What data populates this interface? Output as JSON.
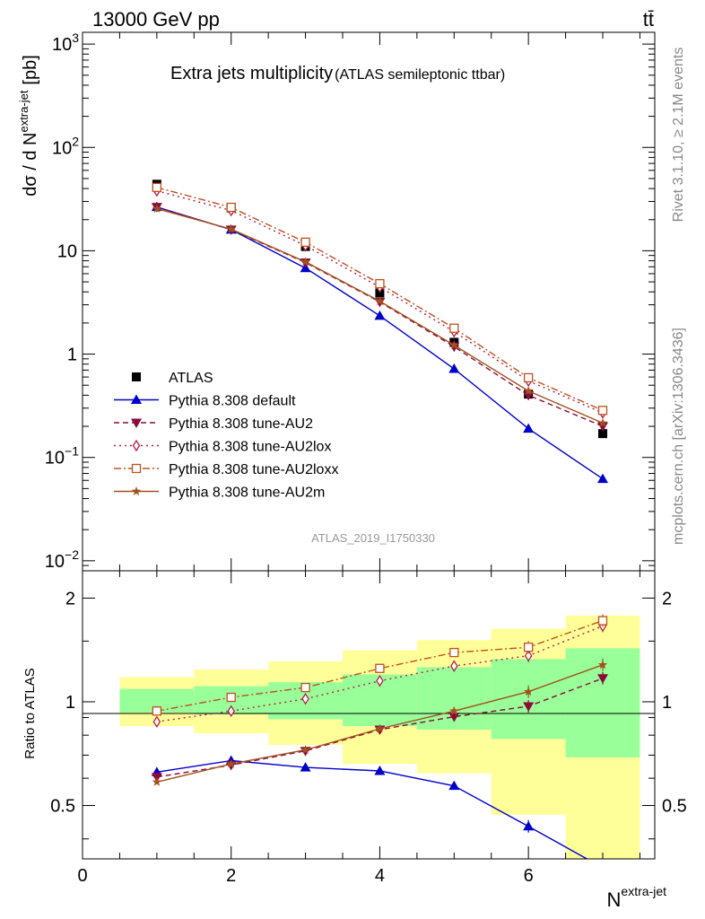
{
  "header": {
    "left": "13000 GeV pp",
    "right": "tt̄"
  },
  "side_labels": {
    "rivet": "Rivet 3.1.10, ≥ 2.1M events",
    "mcplots": "mcplots.cern.ch [arXiv:1306.3436]"
  },
  "main": {
    "title": "Extra jets multiplicity",
    "subtitle": "(ATLAS semileptonic ttbar)",
    "ylabel_prefix": "dσ / d N",
    "ylabel_sup": "extra-jet",
    "ylabel_unit": "[pb]",
    "watermark": "ATLAS_2019_I1750330"
  },
  "ratio": {
    "ylabel": "Ratio to ATLAS"
  },
  "xaxis": {
    "label_main": "N",
    "label_sup": "extra-jet"
  },
  "colors": {
    "data": "#000000",
    "default": "#0000cc",
    "au2": "#8b0a3c",
    "au2lox": "#b01f48",
    "au2loxx": "#c0501f",
    "au2m": "#a0521d",
    "band_inner": "#99ff99",
    "band_outer": "#ffff99"
  },
  "chart_data": [
    {
      "type": "scatter",
      "panel": "main",
      "ylog": true,
      "xlim": [
        0,
        7.7
      ],
      "ylim": [
        0.008,
        1300
      ],
      "x": [
        1,
        2,
        3,
        4,
        5,
        6,
        7
      ],
      "yticks": [
        {
          "value": 0.01,
          "base": "10",
          "exp": "−2"
        },
        {
          "value": 0.1,
          "base": "10",
          "exp": "−1"
        },
        {
          "value": 1,
          "base": "1",
          "exp": ""
        },
        {
          "value": 10,
          "base": "10",
          "exp": ""
        },
        {
          "value": 100,
          "base": "10",
          "exp": "2"
        },
        {
          "value": 1000,
          "base": "10",
          "exp": "3"
        }
      ],
      "series": [
        {
          "key": "data",
          "name": "ATLAS",
          "marker": "square",
          "line": "none",
          "values": [
            44,
            26,
            11,
            3.9,
            1.3,
            0.41,
            0.17
          ]
        },
        {
          "key": "default",
          "name": "Pythia 8.308 default",
          "marker": "triangle-up",
          "line": "solid",
          "values": [
            26.5,
            16,
            6.8,
            2.35,
            0.72,
            0.19,
            0.062
          ]
        },
        {
          "key": "au2",
          "name": "Pythia 8.308 tune-AU2",
          "marker": "triangle-down",
          "line": "dashed",
          "values": [
            26.5,
            16,
            7.7,
            3.2,
            1.18,
            0.4,
            0.2
          ]
        },
        {
          "key": "au2lox",
          "name": "Pythia 8.308 tune-AU2lox",
          "marker": "diamond-open",
          "line": "dotted",
          "values": [
            38,
            24.5,
            11.2,
            4.45,
            1.65,
            0.55,
            0.27
          ]
        },
        {
          "key": "au2loxx",
          "name": "Pythia 8.308 tune-AU2loxx",
          "marker": "square-open",
          "line": "dashdot",
          "values": [
            41,
            26.3,
            12.1,
            4.8,
            1.78,
            0.59,
            0.285
          ]
        },
        {
          "key": "au2m",
          "name": "Pythia 8.308 tune-AU2m",
          "marker": "star",
          "line": "solid",
          "values": [
            25.5,
            16.2,
            7.8,
            3.25,
            1.22,
            0.44,
            0.215
          ]
        }
      ]
    },
    {
      "type": "line",
      "panel": "ratio",
      "xlim": [
        0,
        7.7
      ],
      "ylim": [
        0.35,
        2.4
      ],
      "x": [
        1,
        2,
        3,
        4,
        5,
        6,
        7
      ],
      "xticks": [
        0,
        2,
        4,
        6
      ],
      "yticks": [
        0.5,
        1,
        2
      ],
      "bands": {
        "edges": [
          0.5,
          1.5,
          2.5,
          3.5,
          4.5,
          5.5,
          6.5,
          7.5
        ],
        "inner_low": [
          0.93,
          0.92,
          0.89,
          0.85,
          0.83,
          0.78,
          0.69
        ],
        "inner_high": [
          1.09,
          1.11,
          1.14,
          1.2,
          1.26,
          1.33,
          1.43
        ],
        "outer_low": [
          0.85,
          0.81,
          0.75,
          0.66,
          0.62,
          0.47,
          0.3
        ],
        "outer_high": [
          1.18,
          1.24,
          1.31,
          1.41,
          1.51,
          1.63,
          1.78
        ]
      },
      "series": [
        {
          "key": "default",
          "values": [
            0.625,
            0.675,
            0.645,
            0.63,
            0.57,
            0.435,
            0.33
          ]
        },
        {
          "key": "au2",
          "values": [
            0.605,
            0.655,
            0.72,
            0.83,
            0.905,
            0.97,
            1.17
          ]
        },
        {
          "key": "au2lox",
          "values": [
            0.875,
            0.94,
            1.02,
            1.15,
            1.27,
            1.36,
            1.66
          ]
        },
        {
          "key": "au2loxx",
          "values": [
            0.94,
            1.03,
            1.1,
            1.25,
            1.39,
            1.44,
            1.72
          ]
        },
        {
          "key": "au2m",
          "values": [
            0.585,
            0.66,
            0.725,
            0.835,
            0.94,
            1.07,
            1.28
          ]
        }
      ]
    }
  ]
}
